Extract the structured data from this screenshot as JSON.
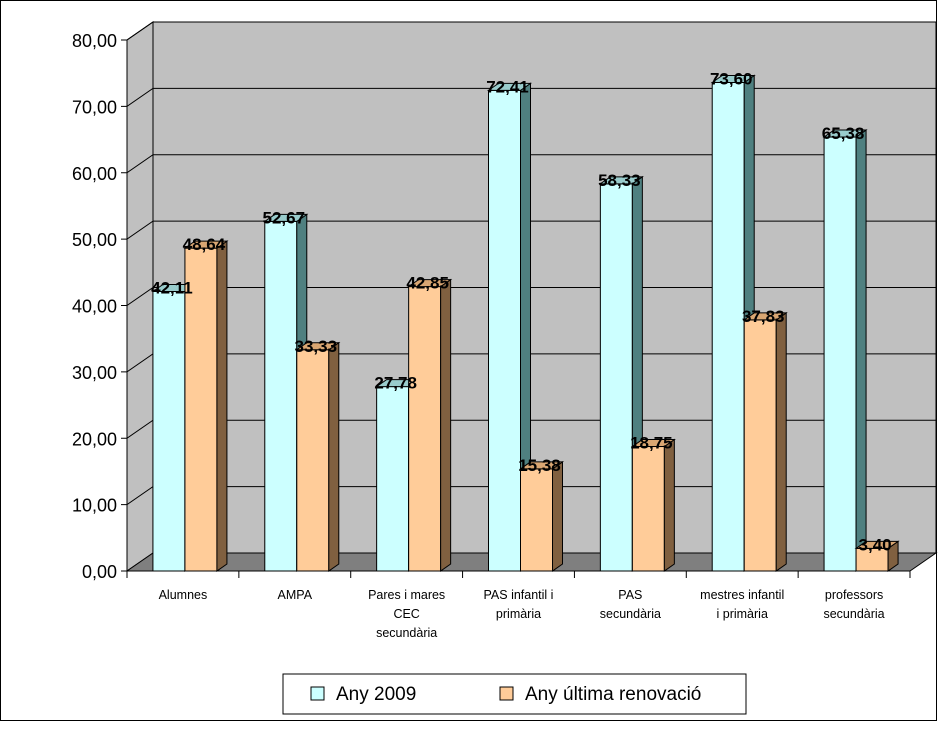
{
  "chart_data": {
    "type": "bar",
    "categories": [
      [
        "Alumnes"
      ],
      [
        "AMPA"
      ],
      [
        "Pares i mares",
        "CEC",
        "secundària"
      ],
      [
        "PAS infantil i",
        "primària"
      ],
      [
        "PAS",
        "secundària"
      ],
      [
        "mestres infantil",
        "i primària"
      ],
      [
        "professors",
        "secundària"
      ]
    ],
    "series": [
      {
        "name": "Any 2009",
        "values": [
          42.11,
          52.67,
          27.78,
          72.41,
          58.33,
          73.6,
          65.38
        ],
        "labels": [
          "42,11",
          "52,67",
          "27,78",
          "72,41",
          "58,33",
          "73,60",
          "65,38"
        ]
      },
      {
        "name": "Any última renovació",
        "values": [
          48.64,
          33.33,
          42.85,
          15.38,
          18.75,
          37.83,
          3.4
        ],
        "labels": [
          "48,64",
          "33,33",
          "42,85",
          "15,38",
          "18,75",
          "37,83",
          "3,40"
        ]
      }
    ],
    "ylim": [
      0,
      80
    ],
    "yticks": [
      "0,00",
      "10,00",
      "20,00",
      "30,00",
      "40,00",
      "50,00",
      "60,00",
      "70,00",
      "80,00"
    ],
    "grid": true,
    "legend_position": "bottom",
    "colors": {
      "series1_front": "#ccffff",
      "series1_side": "#4f8080",
      "series1_top": "#99cccc",
      "series2_front": "#ffcc99",
      "series2_side": "#806040",
      "series2_top": "#d9a672",
      "wall": "#c0c0c0",
      "floor": "#7f7f7f"
    }
  }
}
